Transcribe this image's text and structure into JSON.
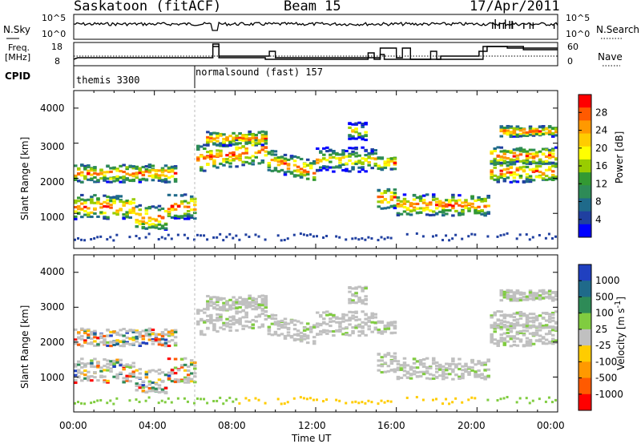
{
  "header": {
    "station": "Saskatoon (fitACF)",
    "beam": "Beam 15",
    "date": "17/Apr/2011"
  },
  "top_panels": {
    "nsky_label": "N.Sky",
    "nsky_ticks": [
      "10^5",
      "10^0"
    ],
    "nsearch_label": "N.Search",
    "nsearch_ticks": [
      "10^5",
      "10^0"
    ],
    "freq_label": "Freq.",
    "freq_unit": "[MHz]",
    "freq_ticks": [
      "18",
      "8"
    ],
    "nave_label": "Nave",
    "nave_ticks": [
      "60",
      "0"
    ],
    "cpid_label": "CPID",
    "cpid_segments": [
      {
        "name": "themis 3300",
        "start_hour": 0
      },
      {
        "name": "normalsound (fast) 157",
        "start_hour": 6
      }
    ]
  },
  "chart_data": [
    {
      "type": "heatmap",
      "name": "power-panel",
      "ylabel": "Slant Range [km]",
      "yticks": [
        "4000",
        "3000",
        "2000",
        "1000"
      ],
      "ylim": [
        0,
        4500
      ],
      "xlim": [
        0,
        24
      ],
      "colorbar": {
        "label": "Power [dB]",
        "ticks": [
          "28",
          "24",
          "20",
          "16",
          "12",
          "8",
          "4"
        ],
        "colors": [
          "#ff0000",
          "#ff5a00",
          "#ff9900",
          "#ffcc00",
          "#ffff00",
          "#99cc00",
          "#339933",
          "#2e8b57",
          "#1f6a8a",
          "#2040a0",
          "#0000ff"
        ]
      }
    },
    {
      "type": "heatmap",
      "name": "velocity-panel",
      "ylabel": "Slant Range [km]",
      "yticks": [
        "4000",
        "3000",
        "2000",
        "1000"
      ],
      "ylim": [
        0,
        4500
      ],
      "xlim": [
        0,
        24
      ],
      "colorbar": {
        "label": "Velocity [m s^-1]",
        "ticks": [
          "1000",
          "500",
          "100",
          "25",
          "-25",
          "-100",
          "-500",
          "-1000"
        ],
        "colors": [
          "#2040c0",
          "#1f6a8a",
          "#2e8b57",
          "#80cc40",
          "#c0c0c0",
          "#ffcc00",
          "#ff9900",
          "#ff5a00",
          "#ff0000"
        ]
      }
    }
  ],
  "x_axis": {
    "ticks": [
      "00:00",
      "04:00",
      "08:00",
      "12:00",
      "16:00",
      "20:00",
      "00:00"
    ],
    "label": "Time UT"
  }
}
